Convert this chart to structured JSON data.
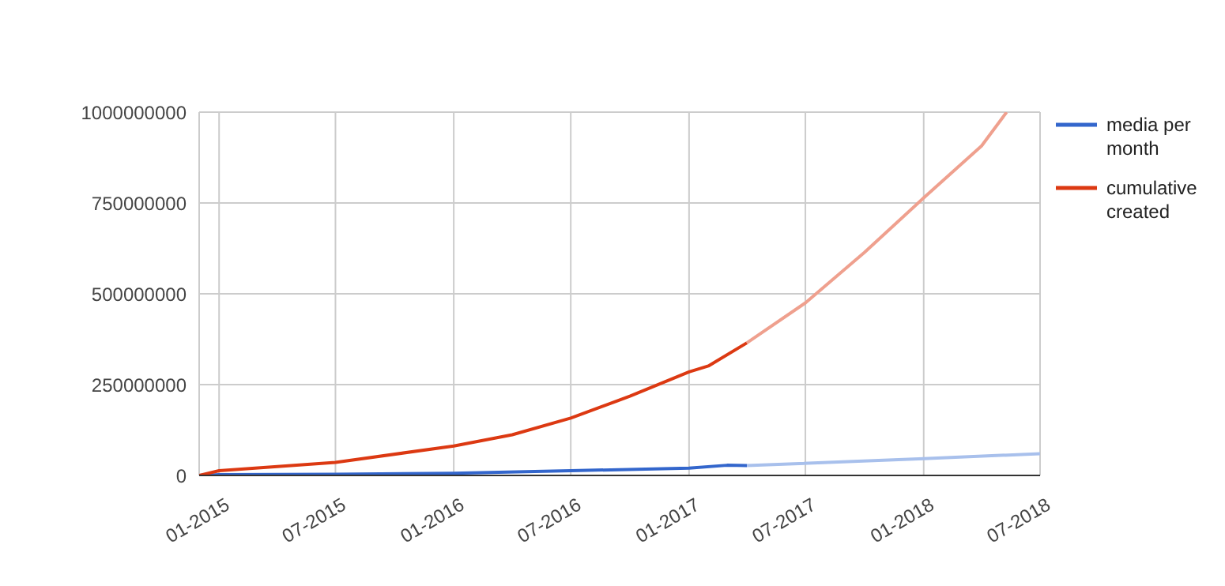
{
  "chart_data": {
    "type": "line",
    "xlim": [
      "2014-12",
      "2018-07"
    ],
    "xticks": [
      {
        "value": "2015-01",
        "label": "01-2015"
      },
      {
        "value": "2015-07",
        "label": "07-2015"
      },
      {
        "value": "2016-01",
        "label": "01-2016"
      },
      {
        "value": "2016-07",
        "label": "07-2016"
      },
      {
        "value": "2017-01",
        "label": "01-2017"
      },
      {
        "value": "2017-07",
        "label": "07-2017"
      },
      {
        "value": "2018-01",
        "label": "01-2018"
      },
      {
        "value": "2018-07",
        "label": "07-2018"
      }
    ],
    "ylim": [
      0,
      1000000000
    ],
    "yticks": [
      0,
      250000000,
      500000000,
      750000000,
      1000000000
    ],
    "grid": true,
    "legend": "right",
    "marker": "none",
    "series": [
      {
        "name": "media per month",
        "color": "#3366cc",
        "x": [
          "2014-12",
          "2015-01",
          "2015-07",
          "2016-01",
          "2016-07",
          "2017-01",
          "2017-03",
          "2017-04"
        ],
        "values": [
          0,
          2000000,
          3000000,
          6000000,
          13000000,
          20000000,
          28000000,
          27000000
        ]
      },
      {
        "name": "cumulative created",
        "color": "#dc3912",
        "x": [
          "2014-12",
          "2015-01",
          "2015-07",
          "2016-01",
          "2016-04",
          "2016-07",
          "2016-10",
          "2017-01",
          "2017-02",
          "2017-04"
        ],
        "values": [
          0,
          13000000,
          36000000,
          81000000,
          112000000,
          158000000,
          218000000,
          285000000,
          302000000,
          365000000
        ]
      },
      {
        "color": "#efa08e",
        "x": [
          "2017-04",
          "2017-07",
          "2017-10",
          "2018-01",
          "2018-04",
          "2018-05-10"
        ],
        "values": [
          365000000,
          475000000,
          614000000,
          764000000,
          907000000,
          1000000000
        ]
      },
      {
        "color": "#a8c0ec",
        "x": [
          "2017-04",
          "2018-01",
          "2018-07"
        ],
        "values": [
          27000000,
          46000000,
          60000000
        ]
      }
    ]
  }
}
